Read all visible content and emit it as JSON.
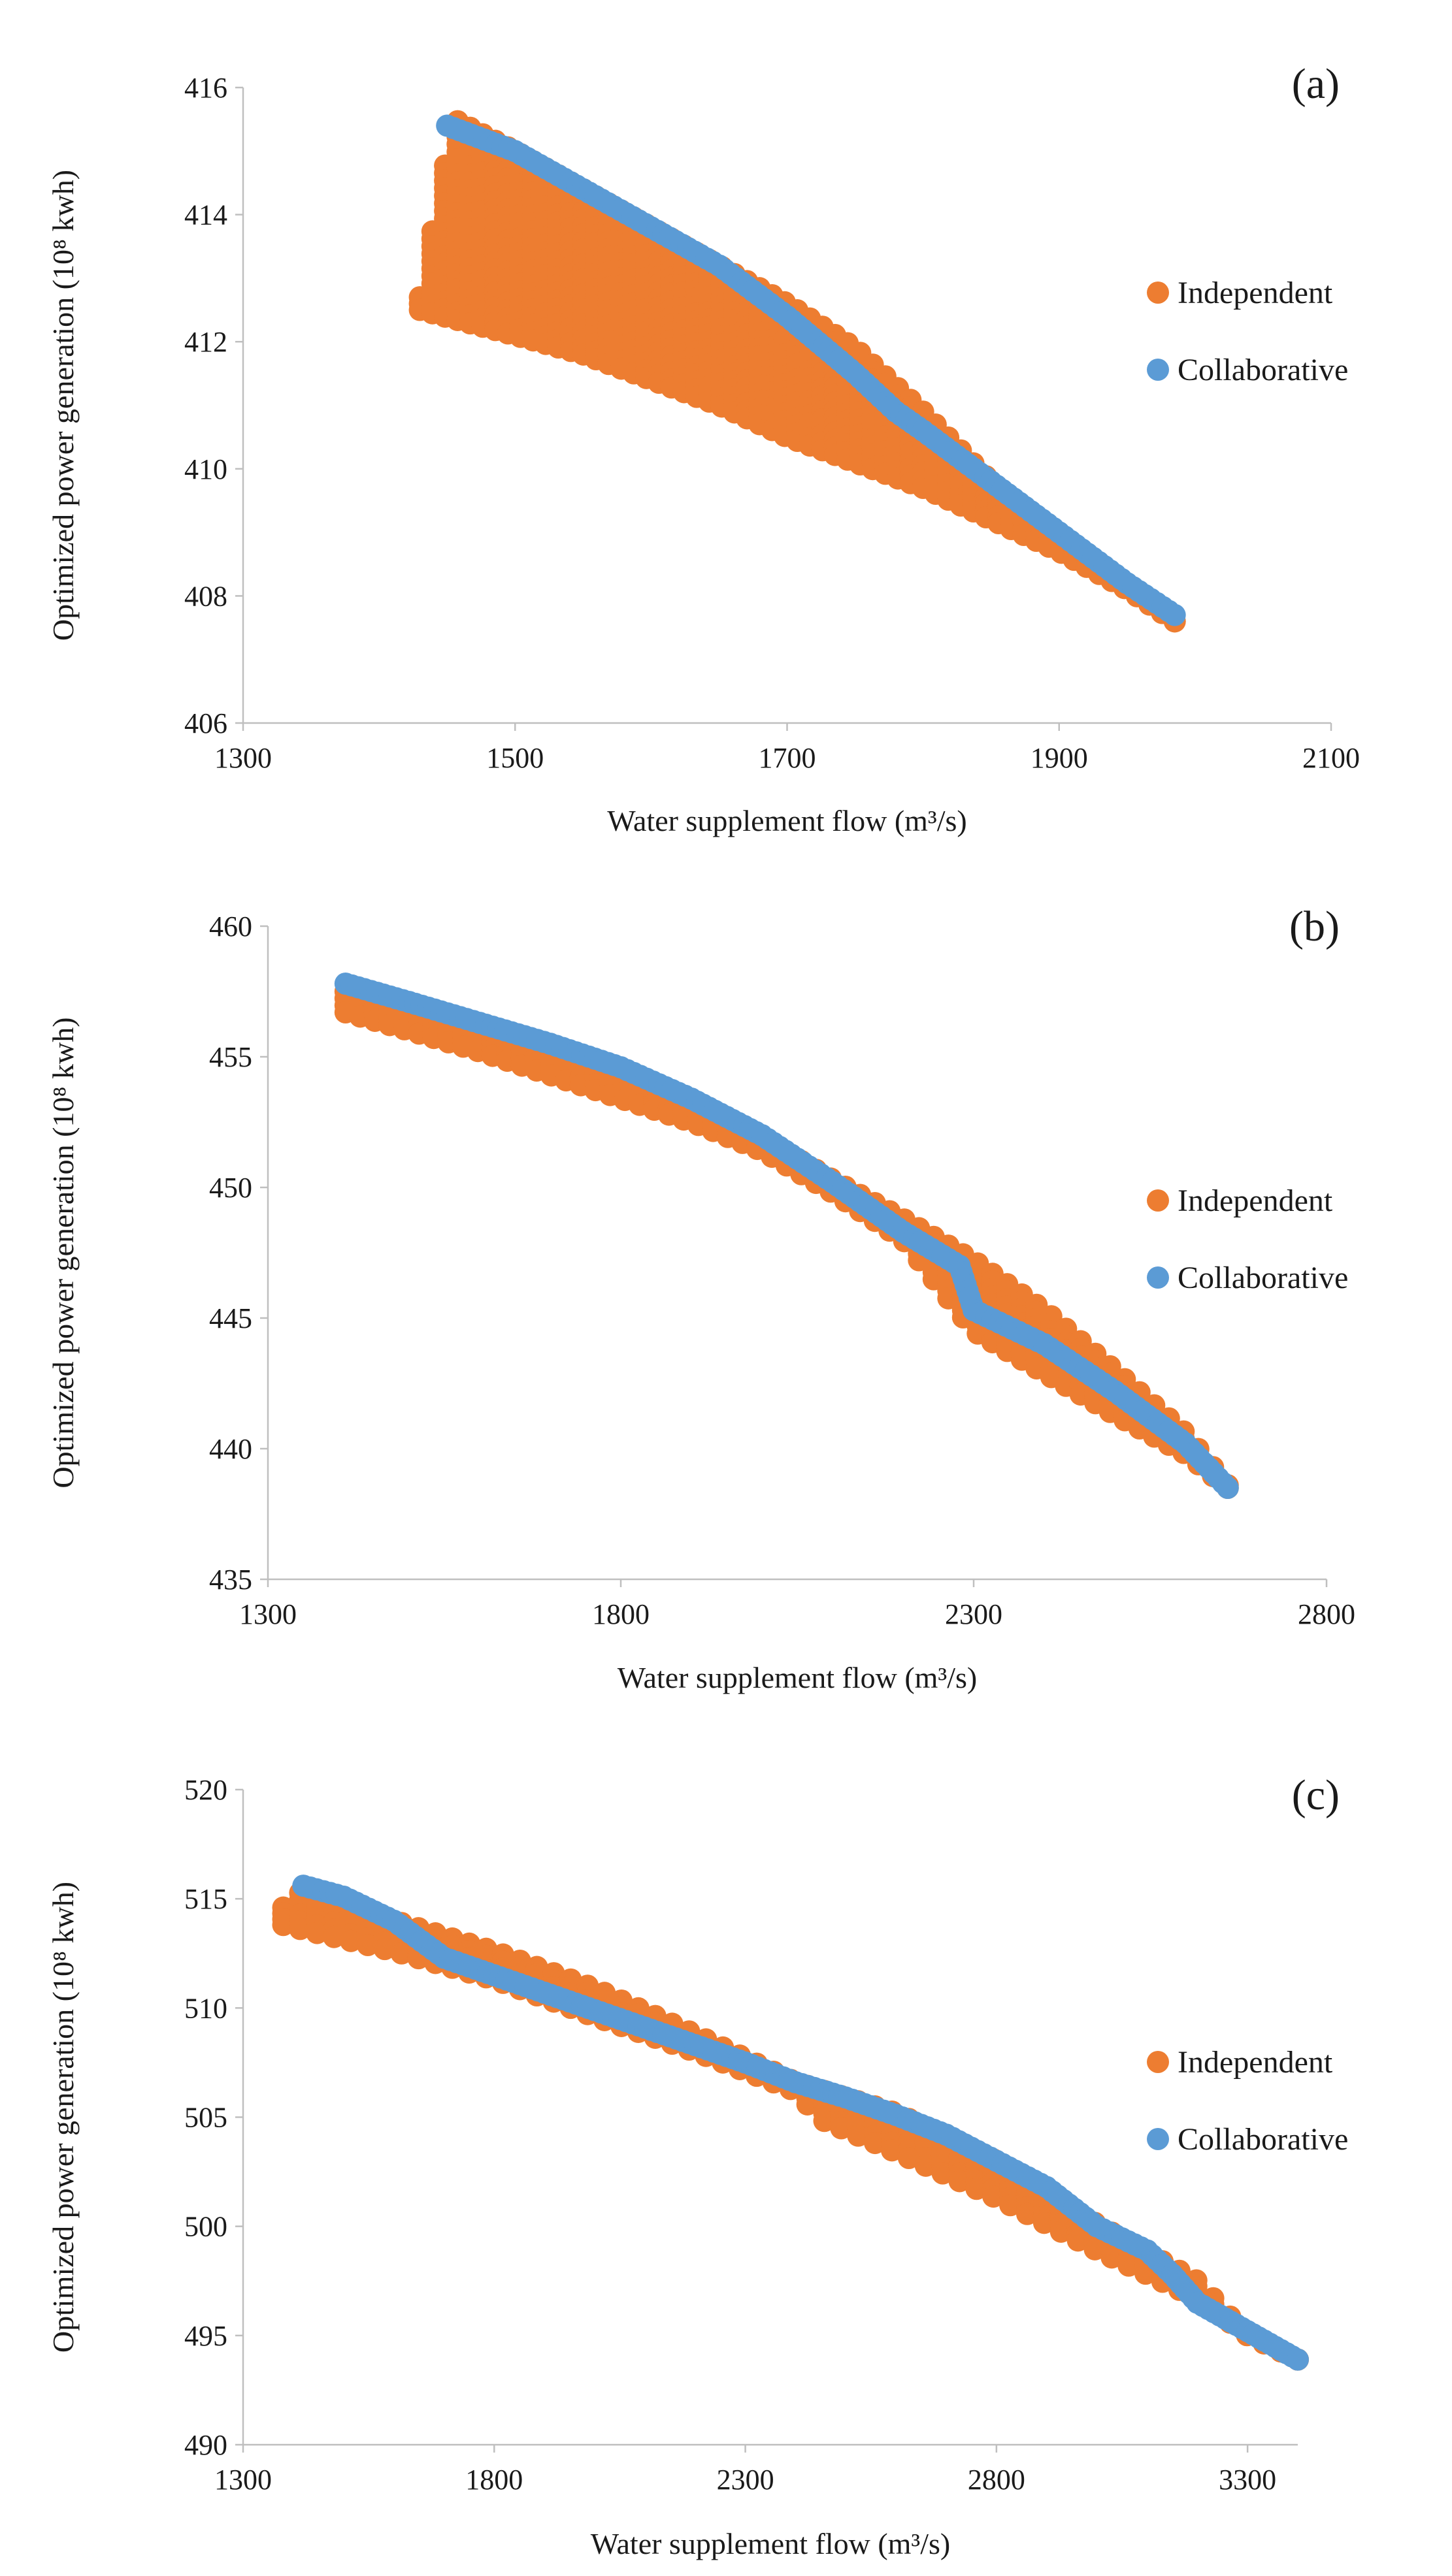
{
  "chart_data": [
    {
      "type": "scatter",
      "panel_label": "(a)",
      "xlabel": "Water supplement flow (m³/s)",
      "ylabel": "Optimized power generation (10⁸ kwh)",
      "xlim": [
        1300,
        2100
      ],
      "ylim": [
        406,
        416
      ],
      "xticks": [
        "1300",
        "1500",
        "1700",
        "1900",
        "2100"
      ],
      "yticks": [
        "406",
        "408",
        "410",
        "412",
        "414",
        "416"
      ],
      "legend_position": "right",
      "series": [
        {
          "name": "Independent",
          "color": "#ED7D31",
          "upper": [
            [
              1430,
              412.7
            ],
            [
              1455,
              415.5
            ],
            [
              1500,
              415.0
            ],
            [
              1550,
              414.4
            ],
            [
              1600,
              413.8
            ],
            [
              1650,
              413.2
            ],
            [
              1700,
              412.6
            ],
            [
              1750,
              411.9
            ],
            [
              1800,
              410.9
            ],
            [
              1850,
              409.8
            ],
            [
              1900,
              408.9
            ],
            [
              1950,
              408.1
            ],
            [
              1985,
              407.6
            ]
          ],
          "lower": [
            [
              1430,
              412.5
            ],
            [
              1500,
              412.1
            ],
            [
              1550,
              411.8
            ],
            [
              1600,
              411.4
            ],
            [
              1650,
              411.0
            ],
            [
              1700,
              410.5
            ],
            [
              1750,
              410.1
            ],
            [
              1800,
              409.7
            ],
            [
              1850,
              409.2
            ],
            [
              1900,
              408.7
            ],
            [
              1950,
              408.1
            ],
            [
              1985,
              407.6
            ]
          ]
        },
        {
          "name": "Collaborative",
          "color": "#5B9BD5",
          "points": [
            [
              1450,
              415.4
            ],
            [
              1500,
              415.0
            ],
            [
              1550,
              414.4
            ],
            [
              1600,
              413.8
            ],
            [
              1650,
              413.2
            ],
            [
              1700,
              412.4
            ],
            [
              1750,
              411.5
            ],
            [
              1780,
              410.9
            ],
            [
              1800,
              410.6
            ],
            [
              1850,
              409.8
            ],
            [
              1900,
              409.0
            ],
            [
              1950,
              408.2
            ],
            [
              1985,
              407.7
            ]
          ]
        }
      ]
    },
    {
      "type": "scatter",
      "panel_label": "(b)",
      "xlabel": "Water supplement flow (m³/s)",
      "ylabel": "Optimized power generation (10⁸ kwh)",
      "xlim": [
        1300,
        2800
      ],
      "ylim": [
        435,
        460
      ],
      "xticks": [
        "1300",
        "1800",
        "2300",
        "2800"
      ],
      "yticks": [
        "435",
        "440",
        "445",
        "450",
        "455",
        "460"
      ],
      "legend_position": "right",
      "series": [
        {
          "name": "Independent",
          "color": "#ED7D31",
          "upper": [
            [
              1410,
              457.5
            ],
            [
              1500,
              456.9
            ],
            [
              1600,
              456.1
            ],
            [
              1700,
              455.2
            ],
            [
              1800,
              454.3
            ],
            [
              1900,
              453.2
            ],
            [
              2000,
              451.9
            ],
            [
              2100,
              450.3
            ],
            [
              2200,
              448.8
            ],
            [
              2300,
              447.2
            ],
            [
              2400,
              445.3
            ],
            [
              2500,
              443.0
            ],
            [
              2600,
              440.6
            ],
            [
              2660,
              438.6
            ]
          ],
          "lower": [
            [
              1410,
              456.7
            ],
            [
              1500,
              456.0
            ],
            [
              1600,
              455.2
            ],
            [
              1700,
              454.3
            ],
            [
              1800,
              453.4
            ],
            [
              1900,
              452.5
            ],
            [
              2000,
              451.4
            ],
            [
              2100,
              449.8
            ],
            [
              2200,
              448.0
            ],
            [
              2300,
              444.5
            ],
            [
              2400,
              442.9
            ],
            [
              2500,
              441.3
            ],
            [
              2600,
              439.8
            ],
            [
              2660,
              438.5
            ]
          ]
        },
        {
          "name": "Collaborative",
          "color": "#5B9BD5",
          "points": [
            [
              1410,
              457.8
            ],
            [
              1500,
              457.1
            ],
            [
              1600,
              456.3
            ],
            [
              1700,
              455.5
            ],
            [
              1800,
              454.6
            ],
            [
              1900,
              453.4
            ],
            [
              2000,
              452.0
            ],
            [
              2100,
              450.2
            ],
            [
              2200,
              448.3
            ],
            [
              2280,
              447.0
            ],
            [
              2300,
              445.3
            ],
            [
              2400,
              444.0
            ],
            [
              2500,
              442.2
            ],
            [
              2600,
              440.2
            ],
            [
              2660,
              438.5
            ]
          ]
        }
      ]
    },
    {
      "type": "scatter",
      "panel_label": "(c)",
      "xlabel": "Water supplement flow (m³/s)",
      "ylabel": "Optimized power generation (10⁸ kwh)",
      "xlim": [
        1300,
        3400
      ],
      "ylim": [
        490,
        520
      ],
      "xticks": [
        "1300",
        "1800",
        "2300",
        "2800",
        "3300"
      ],
      "yticks": [
        "490",
        "495",
        "500",
        "505",
        "510",
        "515",
        "520"
      ],
      "legend_position": "right",
      "series": [
        {
          "name": "Independent",
          "color": "#ED7D31",
          "upper": [
            [
              1380,
              514.6
            ],
            [
              1420,
              515.4
            ],
            [
              1600,
              514.0
            ],
            [
              1800,
              512.6
            ],
            [
              2000,
              510.9
            ],
            [
              2200,
              508.8
            ],
            [
              2400,
              506.6
            ],
            [
              2600,
              505.2
            ],
            [
              2800,
              503.0
            ],
            [
              3000,
              500.1
            ],
            [
              3200,
              497.5
            ],
            [
              3300,
              495.0
            ],
            [
              3400,
              493.9
            ]
          ],
          "lower": [
            [
              1380,
              513.8
            ],
            [
              1600,
              512.6
            ],
            [
              1800,
              511.3
            ],
            [
              2000,
              509.6
            ],
            [
              2200,
              508.0
            ],
            [
              2400,
              506.2
            ],
            [
              2450,
              504.9
            ],
            [
              2600,
              503.4
            ],
            [
              2800,
              501.3
            ],
            [
              3000,
              498.9
            ],
            [
              3200,
              496.7
            ],
            [
              3300,
              495.0
            ],
            [
              3400,
              493.9
            ]
          ]
        },
        {
          "name": "Collaborative",
          "color": "#5B9BD5",
          "points": [
            [
              1420,
              515.6
            ],
            [
              1500,
              515.1
            ],
            [
              1600,
              514.0
            ],
            [
              1700,
              512.3
            ],
            [
              1800,
              511.5
            ],
            [
              1900,
              510.7
            ],
            [
              2000,
              509.9
            ],
            [
              2100,
              509.1
            ],
            [
              2200,
              508.3
            ],
            [
              2300,
              507.5
            ],
            [
              2400,
              506.6
            ],
            [
              2500,
              505.9
            ],
            [
              2600,
              505.1
            ],
            [
              2700,
              504.2
            ],
            [
              2800,
              503.0
            ],
            [
              2900,
              501.8
            ],
            [
              3000,
              500.0
            ],
            [
              3100,
              498.9
            ],
            [
              3150,
              497.8
            ],
            [
              3200,
              496.5
            ],
            [
              3300,
              495.2
            ],
            [
              3400,
              493.9
            ]
          ]
        }
      ]
    }
  ]
}
